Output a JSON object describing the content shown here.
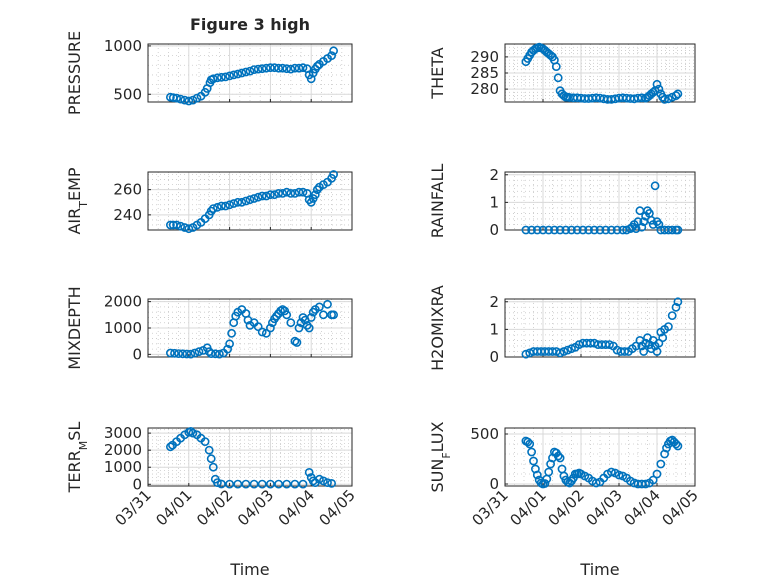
{
  "figure_title": "Figure 3 high",
  "colors": {
    "marker": "#0072bd",
    "axes": "#262626",
    "grid": "#d9d9d9"
  },
  "chart_data": [
    {
      "type": "scatter",
      "ylabel": "PRESSURE",
      "xlabel": "",
      "ylim": [
        420,
        1020
      ],
      "yticks": [
        500,
        1000
      ],
      "ytick_labels": [
        "500",
        "1000"
      ],
      "x": [
        0.55,
        0.62,
        0.7,
        0.8,
        0.9,
        1.0,
        1.1,
        1.2,
        1.3,
        1.4,
        1.45,
        1.52,
        1.55,
        1.6,
        1.7,
        1.8,
        1.9,
        2.0,
        2.1,
        2.2,
        2.3,
        2.4,
        2.5,
        2.6,
        2.7,
        2.8,
        2.9,
        3.0,
        3.1,
        3.2,
        3.3,
        3.4,
        3.5,
        3.6,
        3.7,
        3.8,
        3.9,
        3.95,
        4.0,
        4.05,
        4.1,
        4.15,
        4.2,
        4.3,
        4.4,
        4.5,
        4.55
      ],
      "y": [
        470,
        465,
        460,
        450,
        440,
        430,
        440,
        460,
        480,
        520,
        560,
        620,
        650,
        660,
        670,
        675,
        680,
        690,
        700,
        710,
        720,
        730,
        740,
        755,
        760,
        765,
        770,
        775,
        775,
        770,
        770,
        765,
        760,
        770,
        770,
        775,
        765,
        700,
        660,
        720,
        760,
        790,
        810,
        840,
        870,
        900,
        950
      ]
    },
    {
      "type": "scatter",
      "ylabel": "THETA",
      "xlabel": "",
      "ylim": [
        276,
        294
      ],
      "yticks": [
        280,
        285,
        290
      ],
      "ytick_labels": [
        "280",
        "285",
        "290"
      ],
      "x": [
        0.55,
        0.6,
        0.65,
        0.7,
        0.75,
        0.8,
        0.85,
        0.9,
        0.95,
        1.0,
        1.05,
        1.1,
        1.15,
        1.2,
        1.25,
        1.3,
        1.35,
        1.4,
        1.45,
        1.5,
        1.55,
        1.6,
        1.65,
        1.7,
        1.8,
        1.9,
        2.0,
        2.1,
        2.2,
        2.3,
        2.4,
        2.5,
        2.6,
        2.7,
        2.8,
        2.9,
        3.0,
        3.1,
        3.2,
        3.3,
        3.4,
        3.5,
        3.6,
        3.7,
        3.75,
        3.8,
        3.85,
        3.9,
        3.95,
        4.0,
        4.05,
        4.1,
        4.15,
        4.2,
        4.3,
        4.4,
        4.5,
        4.55
      ],
      "y": [
        288.5,
        289.5,
        290.5,
        291.5,
        292,
        292.5,
        292.8,
        293,
        292.8,
        292.5,
        292,
        291.5,
        291,
        290.5,
        290,
        289,
        287,
        283.5,
        279.5,
        278.5,
        278,
        277.5,
        277.5,
        277.4,
        277.3,
        277.3,
        277.2,
        277.1,
        277.1,
        277.2,
        277.3,
        277.2,
        277,
        276.8,
        276.8,
        277,
        277.2,
        277.3,
        277.2,
        277.1,
        277,
        277.2,
        277.3,
        277.2,
        277.5,
        278,
        278.5,
        279,
        279.5,
        281.5,
        280,
        278.5,
        277.5,
        276.8,
        277,
        277.5,
        278,
        278.5
      ]
    },
    {
      "type": "scatter",
      "ylabel": "AIR_TEMP",
      "xlabel": "",
      "ylim": [
        228,
        274
      ],
      "yticks": [
        240,
        260
      ],
      "ytick_labels": [
        "240",
        "260"
      ],
      "x": [
        0.55,
        0.62,
        0.7,
        0.8,
        0.9,
        1.0,
        1.1,
        1.2,
        1.3,
        1.4,
        1.5,
        1.55,
        1.6,
        1.7,
        1.8,
        1.9,
        2.0,
        2.1,
        2.2,
        2.3,
        2.4,
        2.5,
        2.6,
        2.7,
        2.8,
        2.9,
        3.0,
        3.1,
        3.2,
        3.3,
        3.4,
        3.5,
        3.6,
        3.7,
        3.8,
        3.9,
        3.95,
        4.0,
        4.05,
        4.1,
        4.15,
        4.2,
        4.3,
        4.4,
        4.5,
        4.55
      ],
      "y": [
        232,
        232,
        232,
        231,
        230,
        229,
        230,
        232,
        234,
        237,
        240,
        243,
        245,
        246,
        247,
        247,
        248,
        249,
        250,
        250,
        251,
        252,
        253,
        254,
        255,
        255,
        256,
        256,
        257,
        257,
        258,
        257,
        257,
        258,
        258,
        257,
        252,
        250,
        253,
        256,
        260,
        262,
        264,
        266,
        269,
        272
      ]
    },
    {
      "type": "scatter",
      "ylabel": "RAINFALL",
      "xlabel": "",
      "ylim": [
        0,
        2.1
      ],
      "yticks": [
        0,
        1,
        2
      ],
      "ytick_labels": [
        "0",
        "1",
        "2"
      ],
      "x": [
        0.55,
        0.7,
        0.85,
        1.0,
        1.15,
        1.3,
        1.45,
        1.6,
        1.75,
        1.9,
        2.05,
        2.2,
        2.35,
        2.5,
        2.65,
        2.8,
        2.95,
        3.1,
        3.2,
        3.3,
        3.35,
        3.4,
        3.45,
        3.5,
        3.55,
        3.6,
        3.65,
        3.7,
        3.75,
        3.8,
        3.85,
        3.9,
        3.95,
        4.0,
        4.05,
        4.1,
        4.2,
        4.3,
        4.4,
        4.5,
        4.55
      ],
      "y": [
        0,
        0,
        0,
        0,
        0,
        0,
        0,
        0,
        0,
        0,
        0,
        0,
        0,
        0,
        0,
        0,
        0,
        0,
        0,
        0.05,
        0.1,
        0.2,
        0.05,
        0.3,
        0.7,
        0.1,
        0.3,
        0.5,
        0.7,
        0.6,
        0.35,
        0.2,
        1.6,
        0.3,
        0.2,
        0,
        0,
        0,
        0,
        0,
        0
      ]
    },
    {
      "type": "scatter",
      "ylabel": "MIXDEPTH",
      "xlabel": "",
      "ylim": [
        -100,
        2100
      ],
      "yticks": [
        0,
        1000,
        2000
      ],
      "ytick_labels": [
        "0",
        "1000",
        "2000"
      ],
      "x": [
        0.55,
        0.65,
        0.75,
        0.85,
        0.95,
        1.05,
        1.15,
        1.25,
        1.35,
        1.45,
        1.5,
        1.55,
        1.65,
        1.75,
        1.85,
        1.95,
        2.0,
        2.05,
        2.1,
        2.15,
        2.2,
        2.3,
        2.4,
        2.45,
        2.5,
        2.6,
        2.7,
        2.8,
        2.9,
        3.0,
        3.05,
        3.1,
        3.15,
        3.2,
        3.25,
        3.3,
        3.35,
        3.4,
        3.5,
        3.6,
        3.65,
        3.7,
        3.75,
        3.8,
        3.85,
        3.9,
        3.95,
        4.0,
        4.05,
        4.1,
        4.2,
        4.3,
        4.4,
        4.5,
        4.55
      ],
      "y": [
        50,
        40,
        30,
        20,
        15,
        10,
        50,
        100,
        150,
        250,
        100,
        30,
        20,
        10,
        50,
        200,
        400,
        800,
        1200,
        1450,
        1600,
        1700,
        1550,
        1300,
        1100,
        1200,
        1050,
        850,
        800,
        1000,
        1200,
        1350,
        1450,
        1550,
        1650,
        1700,
        1650,
        1500,
        1200,
        500,
        450,
        1000,
        1200,
        1400,
        1300,
        1100,
        1000,
        1400,
        1600,
        1700,
        1800,
        1500,
        1900,
        1500,
        1500
      ]
    },
    {
      "type": "scatter",
      "ylabel": "H2OMIXRA",
      "xlabel": "",
      "ylim": [
        0,
        2.1
      ],
      "yticks": [
        0,
        1,
        2
      ],
      "ytick_labels": [
        "0",
        "1",
        "2"
      ],
      "x": [
        0.55,
        0.65,
        0.75,
        0.85,
        0.95,
        1.05,
        1.15,
        1.25,
        1.35,
        1.45,
        1.55,
        1.65,
        1.75,
        1.85,
        1.95,
        2.05,
        2.15,
        2.25,
        2.35,
        2.45,
        2.55,
        2.65,
        2.75,
        2.85,
        2.95,
        3.05,
        3.15,
        3.25,
        3.35,
        3.45,
        3.55,
        3.6,
        3.65,
        3.7,
        3.75,
        3.8,
        3.85,
        3.9,
        3.95,
        4.0,
        4.05,
        4.1,
        4.15,
        4.2,
        4.3,
        4.4,
        4.5,
        4.55
      ],
      "y": [
        0.1,
        0.15,
        0.2,
        0.2,
        0.2,
        0.2,
        0.2,
        0.2,
        0.2,
        0.15,
        0.2,
        0.25,
        0.3,
        0.35,
        0.45,
        0.5,
        0.5,
        0.5,
        0.5,
        0.45,
        0.45,
        0.45,
        0.45,
        0.4,
        0.25,
        0.2,
        0.2,
        0.2,
        0.3,
        0.4,
        0.6,
        0.4,
        0.2,
        0.5,
        0.7,
        0.45,
        0.3,
        0.6,
        0.4,
        0.2,
        0.5,
        0.9,
        0.7,
        1.0,
        1.1,
        1.5,
        1.8,
        2.0
      ]
    },
    {
      "type": "scatter",
      "ylabel": "TERR_MSL",
      "xlabel": "Time",
      "xlim": [
        0,
        5
      ],
      "xticks": [
        0,
        1,
        2,
        3,
        4,
        5
      ],
      "xtick_labels": [
        "03/31",
        "04/01",
        "04/02",
        "04/03",
        "04/04",
        "04/05"
      ],
      "ylim": [
        -100,
        3300
      ],
      "yticks": [
        0,
        1000,
        2000,
        3000
      ],
      "ytick_labels": [
        "0",
        "1000",
        "2000",
        "3000"
      ],
      "x": [
        0.55,
        0.6,
        0.7,
        0.8,
        0.9,
        1.0,
        1.05,
        1.1,
        1.2,
        1.3,
        1.4,
        1.5,
        1.55,
        1.6,
        1.65,
        1.7,
        1.8,
        2.0,
        2.2,
        2.4,
        2.6,
        2.8,
        3.0,
        3.2,
        3.4,
        3.6,
        3.8,
        3.95,
        4.0,
        4.05,
        4.1,
        4.2,
        4.3,
        4.4,
        4.5
      ],
      "y": [
        2200,
        2300,
        2500,
        2700,
        2900,
        3050,
        3100,
        3000,
        2900,
        2700,
        2500,
        2000,
        1500,
        1000,
        300,
        100,
        20,
        10,
        10,
        10,
        10,
        10,
        10,
        10,
        10,
        10,
        10,
        700,
        400,
        200,
        100,
        300,
        200,
        100,
        50
      ]
    },
    {
      "type": "scatter",
      "ylabel": "SUN_FLUX",
      "xlabel": "Time",
      "xlim": [
        0,
        5
      ],
      "xticks": [
        0,
        1,
        2,
        3,
        4,
        5
      ],
      "xtick_labels": [
        "03/31",
        "04/01",
        "04/02",
        "04/03",
        "04/04",
        "04/05"
      ],
      "ylim": [
        -20,
        560
      ],
      "yticks": [
        0,
        500
      ],
      "ytick_labels": [
        "0",
        "500"
      ],
      "x": [
        0.55,
        0.6,
        0.65,
        0.7,
        0.75,
        0.8,
        0.85,
        0.9,
        0.95,
        1.0,
        1.05,
        1.1,
        1.15,
        1.2,
        1.25,
        1.3,
        1.35,
        1.4,
        1.45,
        1.5,
        1.55,
        1.6,
        1.65,
        1.7,
        1.75,
        1.8,
        1.85,
        1.9,
        1.95,
        2.0,
        2.1,
        2.2,
        2.3,
        2.4,
        2.5,
        2.6,
        2.7,
        2.8,
        2.9,
        3.0,
        3.1,
        3.2,
        3.3,
        3.4,
        3.5,
        3.6,
        3.7,
        3.8,
        3.9,
        4.0,
        4.1,
        4.2,
        4.25,
        4.3,
        4.35,
        4.4,
        4.45,
        4.5,
        4.55
      ],
      "y": [
        430,
        420,
        400,
        320,
        230,
        150,
        90,
        40,
        10,
        0,
        5,
        50,
        120,
        200,
        260,
        320,
        310,
        280,
        260,
        150,
        80,
        40,
        20,
        10,
        30,
        60,
        100,
        100,
        110,
        100,
        80,
        60,
        30,
        10,
        20,
        60,
        100,
        120,
        110,
        90,
        80,
        60,
        30,
        10,
        0,
        0,
        0,
        10,
        40,
        100,
        200,
        300,
        360,
        400,
        430,
        440,
        420,
        400,
        380
      ]
    }
  ]
}
